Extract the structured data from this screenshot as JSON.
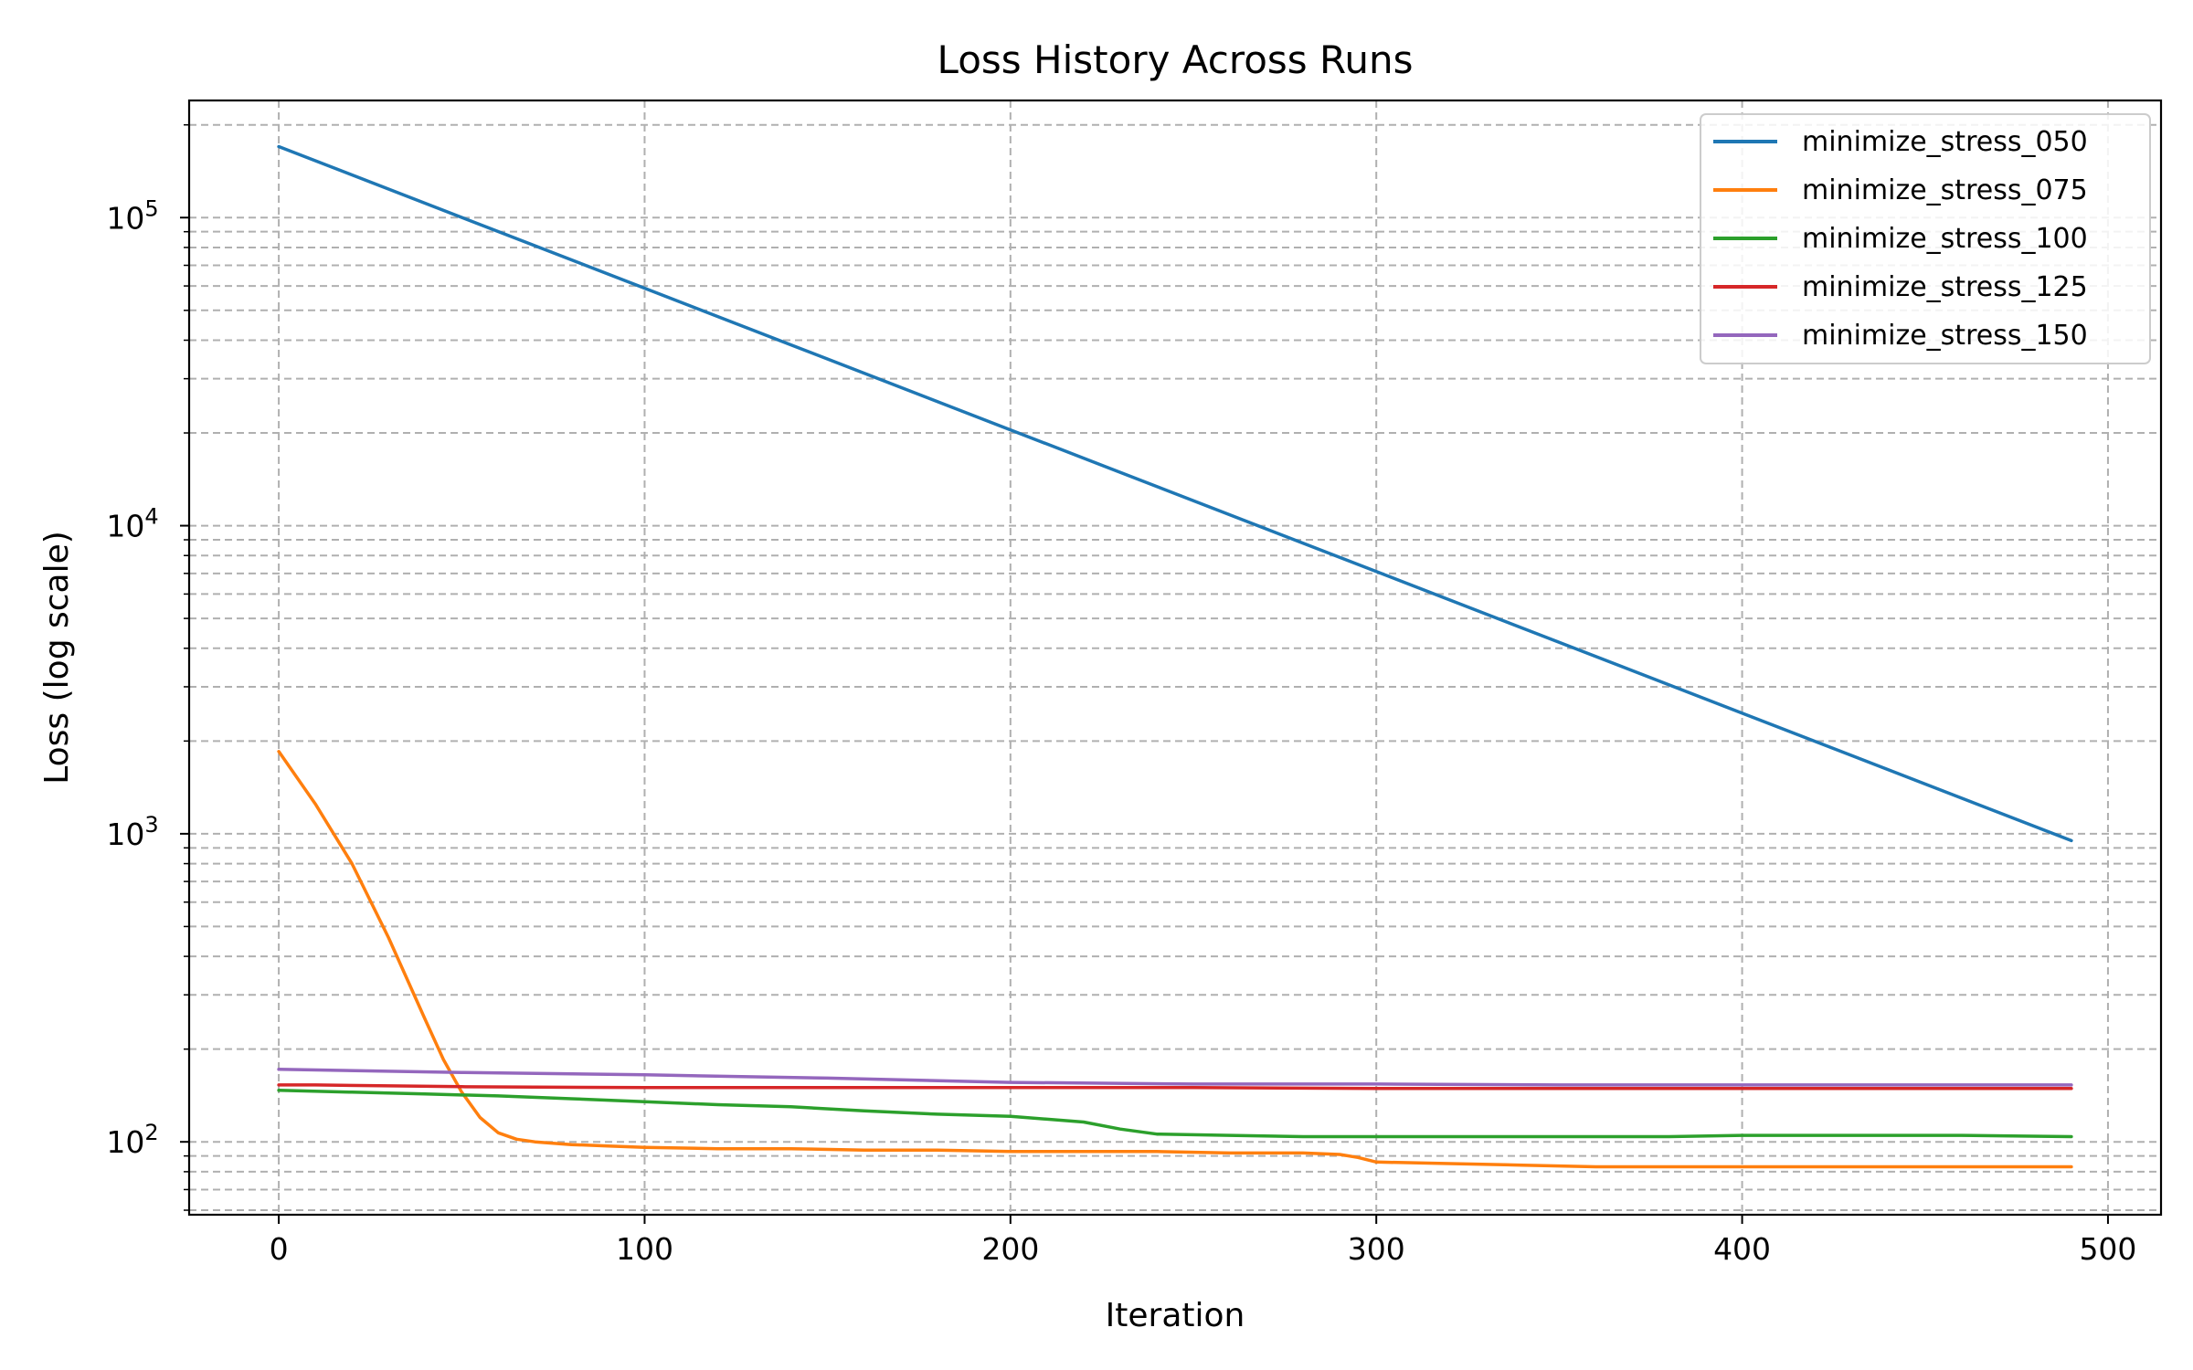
{
  "chart_data": {
    "type": "line",
    "title": "Loss History Across Runs",
    "xlabel": "Iteration",
    "ylabel": "Loss (log scale)",
    "xlim": [
      -24.5,
      514.5
    ],
    "ylim": [
      58,
      240000
    ],
    "yscale": "log",
    "x_ticks": [
      0,
      100,
      200,
      300,
      400,
      500
    ],
    "y_ticks": [
      {
        "value": 100,
        "base": "10",
        "exp": "2"
      },
      {
        "value": 1000,
        "base": "10",
        "exp": "3"
      },
      {
        "value": 10000,
        "base": "10",
        "exp": "4"
      },
      {
        "value": 100000,
        "base": "10",
        "exp": "5"
      }
    ],
    "grid": true,
    "legend_position": "top-right",
    "series": [
      {
        "name": "minimize_stress_050",
        "color": "#1f77b4",
        "x": [
          0,
          490
        ],
        "y": [
          170000,
          950
        ]
      },
      {
        "name": "minimize_stress_075",
        "color": "#ff7f0e",
        "x": [
          0,
          10,
          20,
          30,
          40,
          45,
          50,
          55,
          60,
          65,
          70,
          75,
          80,
          90,
          100,
          120,
          140,
          160,
          180,
          200,
          220,
          240,
          260,
          280,
          290,
          295,
          300,
          320,
          340,
          360,
          380,
          400,
          420,
          440,
          460,
          490
        ],
        "y": [
          1850,
          1250,
          800,
          460,
          250,
          185,
          145,
          120,
          107,
          102,
          100,
          99,
          98,
          97,
          96,
          95,
          95,
          94,
          94,
          93,
          93,
          93,
          92,
          92,
          91,
          89,
          86,
          85,
          84,
          83,
          83,
          83,
          83,
          83,
          83,
          83
        ]
      },
      {
        "name": "minimize_stress_100",
        "color": "#2ca02c",
        "x": [
          0,
          20,
          40,
          60,
          80,
          100,
          120,
          140,
          160,
          180,
          200,
          220,
          230,
          240,
          260,
          280,
          300,
          320,
          340,
          360,
          380,
          400,
          420,
          440,
          460,
          490
        ],
        "y": [
          147,
          145,
          143,
          141,
          138,
          135,
          132,
          130,
          126,
          123,
          121,
          116,
          110,
          106,
          105,
          104,
          104,
          104,
          104,
          104,
          104,
          105,
          105,
          105,
          105,
          104
        ]
      },
      {
        "name": "minimize_stress_125",
        "color": "#d62728",
        "x": [
          0,
          10,
          50,
          100,
          150,
          200,
          250,
          300,
          350,
          400,
          450,
          490
        ],
        "y": [
          153,
          153,
          151,
          150,
          150,
          150,
          150,
          149,
          149,
          149,
          149,
          149
        ]
      },
      {
        "name": "minimize_stress_150",
        "color": "#9467bd",
        "x": [
          0,
          50,
          100,
          150,
          200,
          250,
          300,
          350,
          400,
          450,
          490
        ],
        "y": [
          172,
          168,
          165,
          161,
          156,
          154,
          154,
          153,
          153,
          153,
          153
        ]
      }
    ]
  }
}
